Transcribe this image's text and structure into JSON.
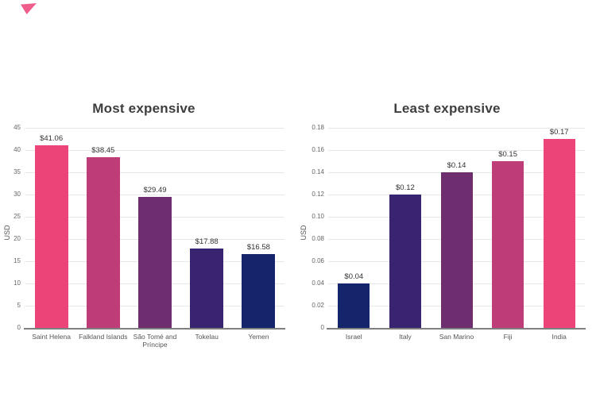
{
  "decor": {
    "accent_triangle_color": "#ED4C7E"
  },
  "palette": {
    "pink": "#EC4379",
    "cerise": "#BE3C78",
    "purple": "#6D2D6F",
    "violet": "#382470",
    "navy": "#14256B"
  },
  "chart_data": [
    {
      "type": "bar",
      "title": "Most expensive",
      "xlabel": "",
      "ylabel": "USD",
      "categories": [
        "Saint Helena",
        "Falkland Islands",
        "São Tomé and Príncipe",
        "Tokelau",
        "Yemen"
      ],
      "values": [
        41.06,
        38.45,
        29.49,
        17.88,
        16.58
      ],
      "bar_labels": [
        "$41.06",
        "$38.45",
        "$29.49",
        "$17.88",
        "$16.58"
      ],
      "bar_colors": [
        "#EC4379",
        "#BE3C78",
        "#6D2D6F",
        "#382470",
        "#14256B"
      ],
      "ylim": [
        0,
        45
      ],
      "ytick_values": [
        0,
        5,
        10,
        15,
        20,
        25,
        30,
        35,
        40,
        45
      ],
      "ytick_labels": [
        "0",
        "5",
        "10",
        "15",
        "20",
        "25",
        "30",
        "35",
        "40",
        "45"
      ],
      "grid": true,
      "legend": "none"
    },
    {
      "type": "bar",
      "title": "Least expensive",
      "xlabel": "",
      "ylabel": "USD",
      "categories": [
        "Israel",
        "Italy",
        "San Marino",
        "Fiji",
        "India"
      ],
      "values": [
        0.04,
        0.12,
        0.14,
        0.15,
        0.17
      ],
      "bar_labels": [
        "$0.04",
        "$0.12",
        "$0.14",
        "$0.15",
        "$0.17"
      ],
      "bar_colors": [
        "#14256B",
        "#382470",
        "#6D2D6F",
        "#BE3C78",
        "#EC4379"
      ],
      "ylim": [
        0,
        0.18
      ],
      "ytick_values": [
        0,
        0.02,
        0.04,
        0.06,
        0.08,
        0.1,
        0.12,
        0.14,
        0.16,
        0.18
      ],
      "ytick_labels": [
        "0",
        "0.02",
        "0.04",
        "0.06",
        "0.08",
        "0.10",
        "0.12",
        "0.14",
        "0.16",
        "0.18"
      ],
      "grid": true,
      "legend": "none"
    }
  ]
}
